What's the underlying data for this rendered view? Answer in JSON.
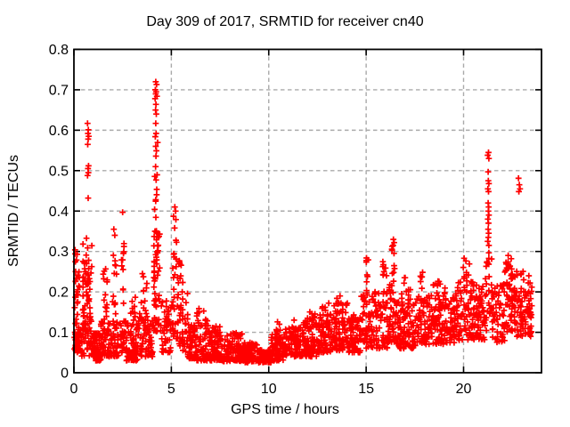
{
  "chart_data": {
    "type": "scatter",
    "title": "Day 309 of 2017, SRMTID for receiver cn40",
    "xlabel": "GPS time / hours",
    "ylabel": "SRMTID / TECUs",
    "xlim": [
      0,
      24
    ],
    "ylim": [
      0,
      0.8
    ],
    "xticks": {
      "values": [
        0,
        5,
        10,
        15,
        20
      ],
      "labels": [
        "0",
        "5",
        "10",
        "15",
        "20"
      ]
    },
    "yticks": {
      "values": [
        0,
        0.1,
        0.2,
        0.3,
        0.4,
        0.5,
        0.6,
        0.7,
        0.8
      ],
      "labels": [
        "0",
        "0.1",
        "0.2",
        "0.3",
        "0.4",
        "0.5",
        "0.6",
        "0.7",
        "0.8"
      ]
    },
    "grid": {
      "show": true,
      "style": "dashed",
      "color": "#aaaaaa"
    },
    "legend": "none",
    "background": "#ffffff",
    "axis_color": "#000000",
    "series_name": "SRMTID",
    "marker": {
      "shape": "plus",
      "color": "#ff0000",
      "size": 7
    },
    "envelope_bands": [
      [
        0.02,
        0.32,
        0.05,
        0.09,
        26,
        1.0
      ],
      [
        0.03,
        0.3,
        0.09,
        0.33,
        38,
        1.1
      ],
      [
        0.35,
        0.95,
        0.04,
        0.12,
        45,
        1.5
      ],
      [
        0.45,
        0.92,
        0.12,
        0.34,
        60,
        1.2
      ],
      [
        0.98,
        1.38,
        0.03,
        0.1,
        70,
        1.6
      ],
      [
        1.38,
        1.85,
        0.04,
        0.13,
        45,
        1.5
      ],
      [
        1.45,
        1.72,
        0.13,
        0.26,
        14,
        1.0
      ],
      [
        1.85,
        2.28,
        0.04,
        0.13,
        40,
        1.5
      ],
      [
        1.95,
        2.2,
        0.13,
        0.3,
        12,
        1.0
      ],
      [
        2.3,
        2.68,
        0.05,
        0.13,
        28,
        1.5
      ],
      [
        2.42,
        2.58,
        0.14,
        0.34,
        11,
        1.0
      ],
      [
        2.68,
        3.3,
        0.03,
        0.13,
        70,
        1.8
      ],
      [
        2.8,
        3.2,
        0.13,
        0.19,
        8,
        1.0
      ],
      [
        3.3,
        4.05,
        0.04,
        0.15,
        75,
        1.8
      ],
      [
        3.45,
        3.8,
        0.15,
        0.25,
        10,
        1.0
      ],
      [
        4.08,
        4.42,
        0.1,
        0.38,
        55,
        1.2
      ],
      [
        4.12,
        4.35,
        0.38,
        0.58,
        10,
        1.0
      ],
      [
        4.45,
        5.0,
        0.05,
        0.18,
        45,
        1.5
      ],
      [
        5.02,
        5.38,
        0.08,
        0.26,
        30,
        1.2
      ],
      [
        5.1,
        5.3,
        0.26,
        0.41,
        10,
        1.0
      ],
      [
        5.38,
        5.85,
        0.05,
        0.22,
        40,
        1.6
      ],
      [
        5.4,
        5.6,
        0.22,
        0.31,
        7,
        1.0
      ],
      [
        5.85,
        6.25,
        0.035,
        0.12,
        55,
        1.6
      ],
      [
        6.25,
        6.95,
        0.03,
        0.14,
        75,
        1.7
      ],
      [
        6.3,
        6.7,
        0.14,
        0.165,
        6,
        1.0
      ],
      [
        6.95,
        7.65,
        0.03,
        0.115,
        85,
        1.6
      ],
      [
        7.65,
        8.65,
        0.028,
        0.1,
        105,
        1.6
      ],
      [
        8.65,
        9.45,
        0.025,
        0.075,
        95,
        1.4
      ],
      [
        9.45,
        10.12,
        0.025,
        0.058,
        95,
        1.2
      ],
      [
        10.12,
        10.75,
        0.03,
        0.095,
        75,
        1.4
      ],
      [
        10.3,
        10.6,
        0.095,
        0.128,
        7,
        1.0
      ],
      [
        10.75,
        11.65,
        0.04,
        0.115,
        90,
        1.4
      ],
      [
        11.65,
        12.55,
        0.04,
        0.135,
        90,
        1.4
      ],
      [
        12.1,
        12.4,
        0.135,
        0.158,
        6,
        1.0
      ],
      [
        12.55,
        13.35,
        0.05,
        0.155,
        90,
        1.3
      ],
      [
        12.7,
        13.1,
        0.155,
        0.175,
        5,
        1.0
      ],
      [
        13.35,
        14.05,
        0.055,
        0.175,
        80,
        1.3
      ],
      [
        14.05,
        14.75,
        0.05,
        0.145,
        70,
        1.4
      ],
      [
        14.75,
        15.35,
        0.06,
        0.2,
        55,
        1.3
      ],
      [
        14.98,
        15.15,
        0.2,
        0.285,
        8,
        1.0
      ],
      [
        15.35,
        16.1,
        0.06,
        0.2,
        70,
        1.4
      ],
      [
        15.85,
        16.08,
        0.2,
        0.295,
        9,
        1.0
      ],
      [
        16.1,
        16.65,
        0.07,
        0.22,
        55,
        1.3
      ],
      [
        16.3,
        16.5,
        0.22,
        0.335,
        10,
        1.0
      ],
      [
        16.65,
        17.6,
        0.06,
        0.185,
        95,
        1.4
      ],
      [
        16.8,
        17.3,
        0.185,
        0.24,
        8,
        1.0
      ],
      [
        17.6,
        18.15,
        0.07,
        0.2,
        55,
        1.3
      ],
      [
        17.75,
        17.95,
        0.2,
        0.26,
        6,
        1.0
      ],
      [
        18.15,
        19.6,
        0.07,
        0.205,
        135,
        1.4
      ],
      [
        18.4,
        19.3,
        0.205,
        0.23,
        8,
        1.0
      ],
      [
        19.6,
        20.45,
        0.08,
        0.225,
        75,
        1.3
      ],
      [
        19.9,
        20.3,
        0.225,
        0.285,
        10,
        1.0
      ],
      [
        20.45,
        21.1,
        0.08,
        0.225,
        70,
        1.3
      ],
      [
        21.1,
        21.45,
        0.1,
        0.3,
        26,
        1.1
      ],
      [
        21.45,
        22.12,
        0.075,
        0.22,
        60,
        1.4
      ],
      [
        22.12,
        22.52,
        0.1,
        0.265,
        45,
        1.2
      ],
      [
        22.15,
        22.45,
        0.265,
        0.29,
        6,
        1.0
      ],
      [
        22.52,
        23.12,
        0.09,
        0.255,
        60,
        1.2
      ],
      [
        23.12,
        23.52,
        0.09,
        0.225,
        45,
        1.3
      ]
    ],
    "points_high": [
      [
        0.7,
        0.617
      ],
      [
        0.74,
        0.601
      ],
      [
        0.72,
        0.592
      ],
      [
        0.76,
        0.585
      ],
      [
        0.73,
        0.578
      ],
      [
        0.71,
        0.565
      ],
      [
        0.75,
        0.512
      ],
      [
        0.72,
        0.505
      ],
      [
        0.74,
        0.495
      ],
      [
        0.7,
        0.488
      ],
      [
        0.73,
        0.432
      ],
      [
        2.05,
        0.355
      ],
      [
        2.1,
        0.34
      ],
      [
        2.5,
        0.397
      ],
      [
        4.2,
        0.72
      ],
      [
        4.24,
        0.713
      ],
      [
        4.18,
        0.7
      ],
      [
        4.22,
        0.695
      ],
      [
        4.2,
        0.69
      ],
      [
        4.26,
        0.684
      ],
      [
        4.17,
        0.678
      ],
      [
        4.21,
        0.664
      ],
      [
        4.19,
        0.65
      ],
      [
        4.23,
        0.64
      ],
      [
        4.2,
        0.617
      ],
      [
        4.22,
        0.592
      ],
      [
        4.18,
        0.584
      ],
      [
        4.2,
        0.56
      ],
      [
        4.21,
        0.536
      ],
      [
        4.19,
        0.51
      ],
      [
        4.22,
        0.477
      ],
      [
        5.18,
        0.41
      ],
      [
        5.22,
        0.4
      ],
      [
        11.3,
        0.13
      ],
      [
        13.66,
        0.19
      ],
      [
        13.5,
        0.184
      ],
      [
        16.4,
        0.33
      ],
      [
        16.44,
        0.322
      ],
      [
        21.28,
        0.545
      ],
      [
        21.24,
        0.538
      ],
      [
        21.3,
        0.53
      ],
      [
        21.26,
        0.497
      ],
      [
        21.27,
        0.475
      ],
      [
        21.3,
        0.468
      ],
      [
        21.25,
        0.455
      ],
      [
        21.28,
        0.448
      ],
      [
        21.26,
        0.42
      ],
      [
        21.29,
        0.41
      ],
      [
        21.27,
        0.4
      ],
      [
        21.3,
        0.39
      ],
      [
        21.25,
        0.38
      ],
      [
        21.28,
        0.37
      ],
      [
        21.26,
        0.355
      ],
      [
        21.29,
        0.345
      ],
      [
        21.27,
        0.335
      ],
      [
        21.24,
        0.325
      ],
      [
        21.3,
        0.315
      ],
      [
        22.82,
        0.481
      ],
      [
        22.86,
        0.465
      ],
      [
        22.9,
        0.455
      ],
      [
        22.84,
        0.448
      ],
      [
        23.35,
        0.24
      ]
    ]
  }
}
